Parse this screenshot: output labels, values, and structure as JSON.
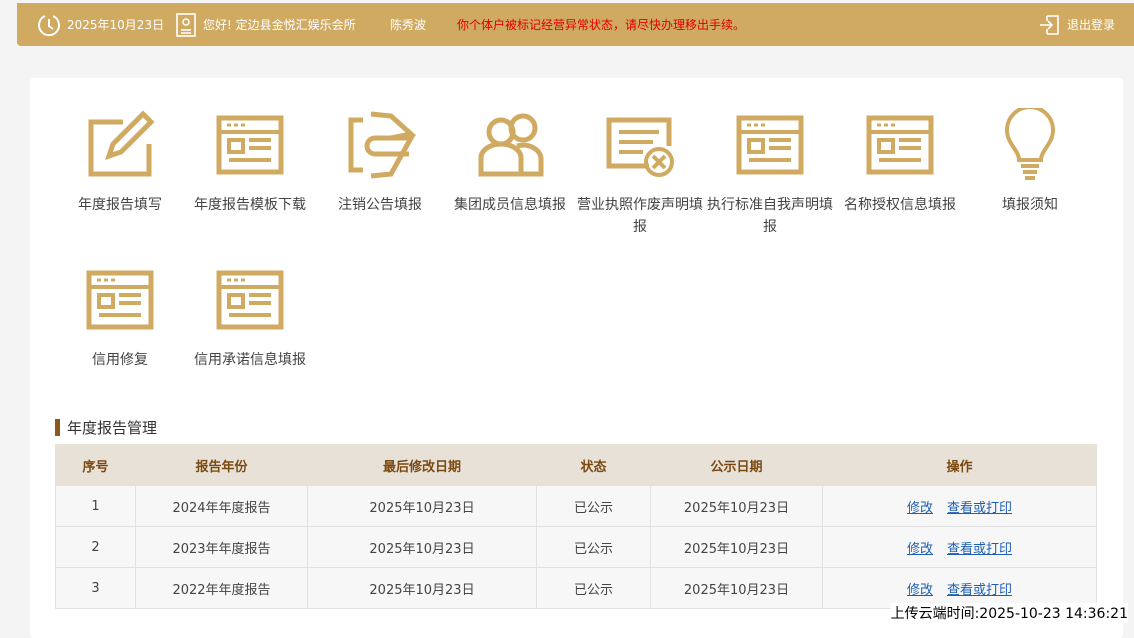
{
  "header": {
    "date": "2025年10月23日",
    "greeting": "您好! 定边县金悦汇娱乐会所",
    "person": "陈秀波",
    "warning": "你个体户被标记经营异常状态，请尽快办理移出手续。",
    "logout": "退出登录"
  },
  "tiles": [
    {
      "label": "年度报告填写",
      "icon": "edit-icon"
    },
    {
      "label": "年度报告模板下载",
      "icon": "template-icon"
    },
    {
      "label": "注销公告填报",
      "icon": "cancel-notice-icon"
    },
    {
      "label": "集团成员信息填报",
      "icon": "group-members-icon"
    },
    {
      "label": "营业执照作废声明填报",
      "icon": "license-void-icon"
    },
    {
      "label": "执行标准自我声明填报",
      "icon": "template-icon"
    },
    {
      "label": "名称授权信息填报",
      "icon": "template-icon"
    },
    {
      "label": "填报须知",
      "icon": "lightbulb-icon"
    },
    {
      "label": "信用修复",
      "icon": "template-icon"
    },
    {
      "label": "信用承诺信息填报",
      "icon": "template-icon"
    }
  ],
  "section_title": "年度报告管理",
  "table": {
    "headers": [
      "序号",
      "报告年份",
      "最后修改日期",
      "状态",
      "公示日期",
      "操作"
    ],
    "rows": [
      {
        "no": "1",
        "year": "2024年年度报告",
        "modified": "2025年10月23日",
        "status": "已公示",
        "published": "2025年10月23日",
        "edit": "修改",
        "view": "查看或打印"
      },
      {
        "no": "2",
        "year": "2023年年度报告",
        "modified": "2025年10月23日",
        "status": "已公示",
        "published": "2025年10月23日",
        "edit": "修改",
        "view": "查看或打印"
      },
      {
        "no": "3",
        "year": "2022年年度报告",
        "modified": "2025年10月23日",
        "status": "已公示",
        "published": "2025年10月23日",
        "edit": "修改",
        "view": "查看或打印"
      }
    ]
  },
  "footer": "上传云端时间:2025-10-23 14:36:21",
  "colors": {
    "header": "#d0aa61",
    "icon": "#d0aa61",
    "warning": "#e00000",
    "link": "#1f5fb0"
  }
}
